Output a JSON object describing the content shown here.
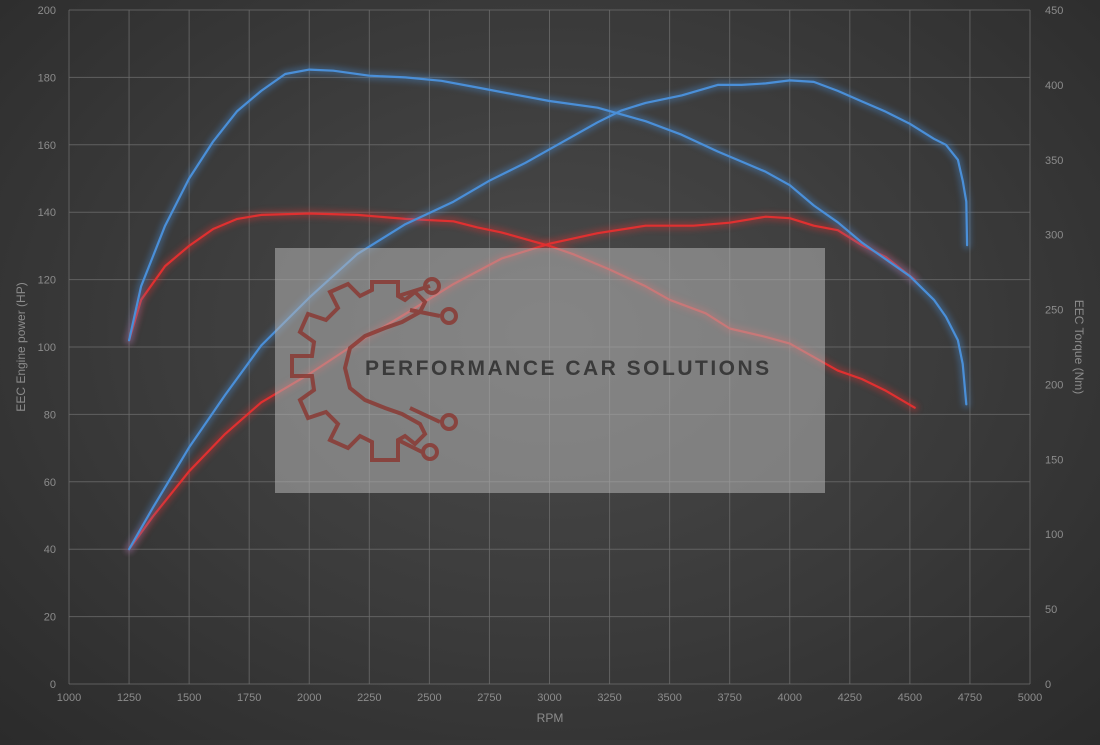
{
  "chart_data": {
    "type": "line",
    "title": "",
    "xlabel": "RPM",
    "ylabel_left": "EEC Engine power (HP)",
    "ylabel_right": "EEC Torque (Nm)",
    "xlim": [
      1000,
      5000
    ],
    "ylim_left": [
      0,
      200
    ],
    "ylim_right": [
      0,
      450
    ],
    "x_ticks": [
      1000,
      1250,
      1500,
      1750,
      2000,
      2250,
      2500,
      2750,
      3000,
      3250,
      3500,
      3750,
      4000,
      4250,
      4500,
      4750,
      5000
    ],
    "y_ticks_left": [
      0,
      20,
      40,
      60,
      80,
      100,
      120,
      140,
      160,
      180,
      200
    ],
    "y_ticks_right": [
      0,
      50,
      100,
      150,
      200,
      250,
      300,
      350,
      400,
      450
    ],
    "grid": true,
    "legend": "none",
    "series": [
      {
        "color": "#e03030",
        "axis": "left",
        "points": [
          [
            1250,
            102
          ],
          [
            1300,
            114
          ],
          [
            1400,
            124
          ],
          [
            1500,
            130
          ],
          [
            1600,
            135
          ],
          [
            1700,
            138
          ],
          [
            1800,
            139.2
          ],
          [
            2000,
            139.6
          ],
          [
            2200,
            139.2
          ],
          [
            2400,
            138
          ],
          [
            2600,
            137.3
          ],
          [
            2700,
            135.5
          ],
          [
            2800,
            134
          ],
          [
            2900,
            132
          ],
          [
            3000,
            130
          ],
          [
            3100,
            127.5
          ],
          [
            3250,
            123
          ],
          [
            3400,
            118
          ],
          [
            3500,
            114
          ],
          [
            3650,
            110
          ],
          [
            3750,
            105.5
          ],
          [
            3900,
            103
          ],
          [
            4000,
            101
          ],
          [
            4100,
            97
          ],
          [
            4200,
            93
          ],
          [
            4300,
            90.5
          ],
          [
            4400,
            87
          ],
          [
            4520,
            82
          ]
        ]
      },
      {
        "color": "#e03030",
        "axis": "right",
        "points": [
          [
            1250,
            90
          ],
          [
            1350,
            112
          ],
          [
            1500,
            142
          ],
          [
            1650,
            167
          ],
          [
            1800,
            188
          ],
          [
            2000,
            207
          ],
          [
            2200,
            228
          ],
          [
            2400,
            247
          ],
          [
            2600,
            267
          ],
          [
            2800,
            284
          ],
          [
            3000,
            294
          ],
          [
            3200,
            301
          ],
          [
            3400,
            306
          ],
          [
            3600,
            306
          ],
          [
            3750,
            308
          ],
          [
            3900,
            312
          ],
          [
            4000,
            311
          ],
          [
            4100,
            306
          ],
          [
            4200,
            303
          ],
          [
            4300,
            293
          ],
          [
            4400,
            285
          ],
          [
            4520,
            270
          ]
        ]
      },
      {
        "color": "#4a8fd8",
        "axis": "left",
        "points": [
          [
            1250,
            102
          ],
          [
            1300,
            118
          ],
          [
            1350,
            127
          ],
          [
            1400,
            136
          ],
          [
            1500,
            150
          ],
          [
            1600,
            161
          ],
          [
            1700,
            170
          ],
          [
            1800,
            176
          ],
          [
            1900,
            181
          ],
          [
            2000,
            182.3
          ],
          [
            2100,
            182
          ],
          [
            2250,
            180.5
          ],
          [
            2400,
            180
          ],
          [
            2550,
            179
          ],
          [
            2700,
            177
          ],
          [
            2850,
            175
          ],
          [
            3000,
            173
          ],
          [
            3200,
            171
          ],
          [
            3400,
            167
          ],
          [
            3550,
            163
          ],
          [
            3700,
            158
          ],
          [
            3800,
            155
          ],
          [
            3900,
            152
          ],
          [
            4000,
            148
          ],
          [
            4100,
            142
          ],
          [
            4200,
            137
          ],
          [
            4300,
            131
          ],
          [
            4400,
            126
          ],
          [
            4500,
            121
          ],
          [
            4600,
            114
          ],
          [
            4650,
            109
          ],
          [
            4700,
            102
          ],
          [
            4720,
            95
          ],
          [
            4735,
            83
          ]
        ]
      },
      {
        "color": "#4a8fd8",
        "axis": "right",
        "points": [
          [
            1250,
            90
          ],
          [
            1350,
            118
          ],
          [
            1500,
            158
          ],
          [
            1650,
            193
          ],
          [
            1800,
            226
          ],
          [
            2000,
            258
          ],
          [
            2200,
            287
          ],
          [
            2400,
            307
          ],
          [
            2600,
            322
          ],
          [
            2750,
            336
          ],
          [
            2900,
            348
          ],
          [
            3000,
            357
          ],
          [
            3200,
            375
          ],
          [
            3300,
            383
          ],
          [
            3400,
            388
          ],
          [
            3550,
            393
          ],
          [
            3700,
            400
          ],
          [
            3800,
            400
          ],
          [
            3900,
            401
          ],
          [
            4000,
            403
          ],
          [
            4100,
            402
          ],
          [
            4200,
            396
          ],
          [
            4300,
            389
          ],
          [
            4400,
            382
          ],
          [
            4500,
            374
          ],
          [
            4600,
            364
          ],
          [
            4650,
            360
          ],
          [
            4700,
            350
          ],
          [
            4720,
            336
          ],
          [
            4735,
            322
          ],
          [
            4738,
            293
          ]
        ]
      }
    ],
    "watermark": "PERFORMANCE CAR SOLUTIONS"
  }
}
